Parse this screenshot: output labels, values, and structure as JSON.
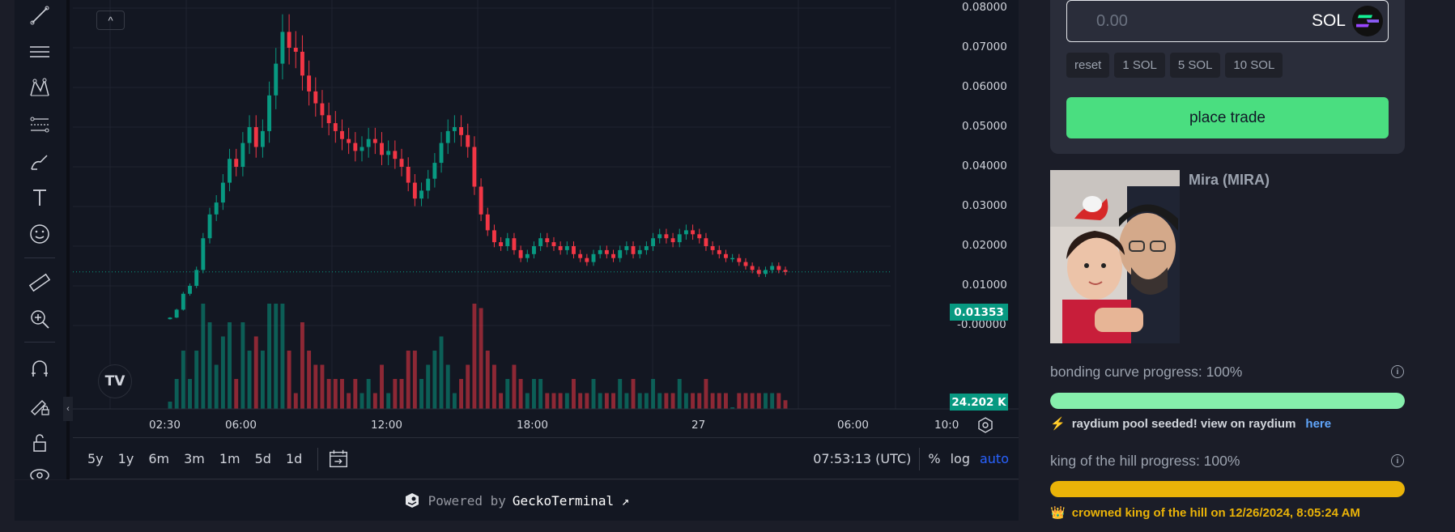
{
  "chart": {
    "price_axis": [
      "0.08000",
      "0.07000",
      "0.06000",
      "0.05000",
      "0.04000",
      "0.03000",
      "0.02000",
      "0.01000",
      "-0.00000"
    ],
    "time_axis": [
      "02:30",
      "06:00",
      "12:00",
      "18:00",
      "27",
      "06:00",
      "10:0"
    ],
    "last_price": "0.01353",
    "last_volume": "24.202 K",
    "collapse_glyph": "^",
    "logo_text": "TV"
  },
  "chart_data": {
    "type": "candlestick",
    "x_range": [
      "02:30",
      "10:00"
    ],
    "y_range": [
      0.0,
      0.08
    ],
    "last_price": 0.01353,
    "series": [
      {
        "name": "price",
        "values": [
          0.002,
          0.004,
          0.008,
          0.01,
          0.014,
          0.022,
          0.028,
          0.031,
          0.036,
          0.042,
          0.04,
          0.046,
          0.05,
          0.045,
          0.049,
          0.058,
          0.066,
          0.074,
          0.07,
          0.069,
          0.063,
          0.059,
          0.056,
          0.053,
          0.051,
          0.049,
          0.047,
          0.046,
          0.044,
          0.045,
          0.047,
          0.046,
          0.043,
          0.044,
          0.042,
          0.04,
          0.036,
          0.032,
          0.034,
          0.037,
          0.041,
          0.046,
          0.049,
          0.05,
          0.048,
          0.045,
          0.035,
          0.028,
          0.024,
          0.021,
          0.02,
          0.022,
          0.019,
          0.017,
          0.018,
          0.02,
          0.022,
          0.021,
          0.02,
          0.019,
          0.02,
          0.018,
          0.017,
          0.016,
          0.018,
          0.019,
          0.018,
          0.017,
          0.019,
          0.02,
          0.018,
          0.019,
          0.02,
          0.022,
          0.023,
          0.022,
          0.021,
          0.023,
          0.024,
          0.023,
          0.022,
          0.02,
          0.019,
          0.018,
          0.017,
          0.017,
          0.016,
          0.015,
          0.014,
          0.013,
          0.014,
          0.015,
          0.014,
          0.0135
        ]
      }
    ]
  },
  "bottom_bar": {
    "ranges": [
      "5y",
      "1y",
      "6m",
      "3m",
      "1m",
      "5d",
      "1d"
    ],
    "time": "07:53:13 (UTC)",
    "percent": "%",
    "log": "log",
    "auto": "auto"
  },
  "powered": {
    "prefix": "Powered by",
    "brand": "GeckoTerminal ↗"
  },
  "trade": {
    "amount_placeholder": "0.00",
    "currency": "SOL",
    "quick": [
      "reset",
      "1 SOL",
      "5 SOL",
      "10 SOL"
    ],
    "place_label": "place trade"
  },
  "token": {
    "name": "Mira (MIRA)"
  },
  "bonding": {
    "label": "bonding curve progress: 100%",
    "progress": 1.0,
    "color": "#86efac",
    "status_icon": "⚡",
    "status": "raydium pool seeded! view on raydium",
    "link": "here"
  },
  "koth": {
    "label": "king of the hill progress: 100%",
    "progress": 1.0,
    "color": "#eab308",
    "status_icon": "👑",
    "status": "crowned king of the hill on 12/26/2024, 8:05:24 AM"
  },
  "colors": {
    "up": "#089981",
    "down": "#f23645",
    "accent": "#4ade80"
  }
}
